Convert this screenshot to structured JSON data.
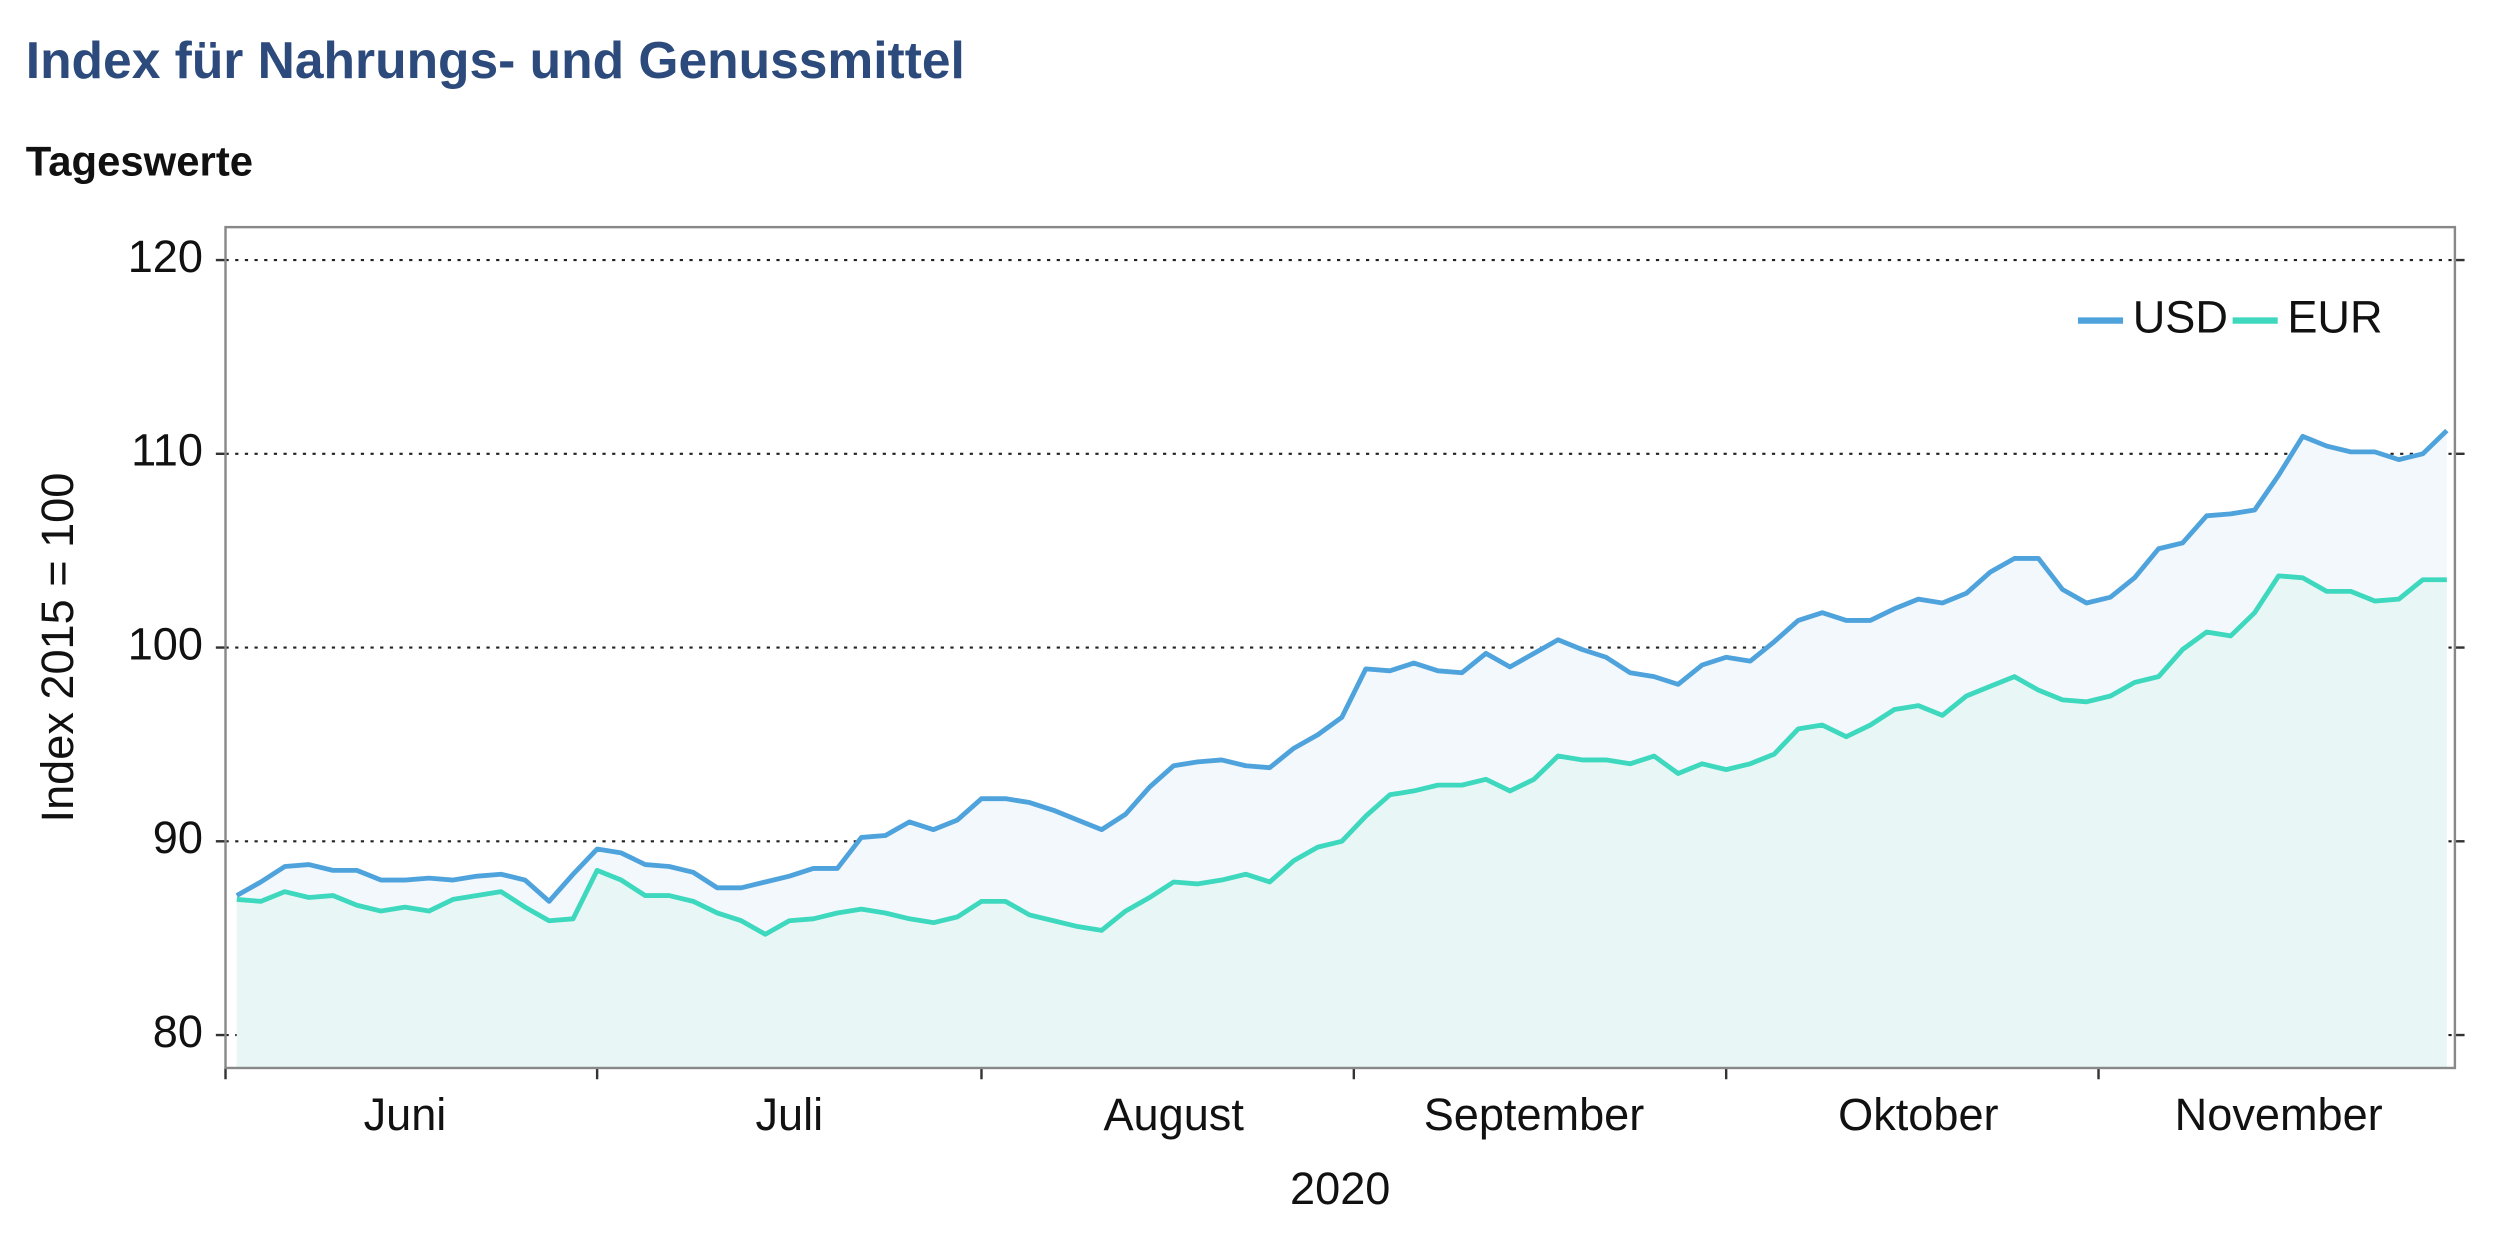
{
  "chart_data": {
    "type": "line",
    "title": "Index für Nahrungs- und Genussmittel",
    "subtitle": "Tageswerte",
    "xlabel": "2020",
    "ylabel": "Index 2015 = 100",
    "categories": [
      null,
      null,
      null,
      null,
      null,
      null,
      null,
      "Juni",
      null,
      null,
      null,
      null,
      null,
      null,
      null,
      null,
      null,
      null,
      null,
      null,
      null,
      null,
      null,
      "Juli",
      null,
      null,
      null,
      null,
      null,
      null,
      null,
      null,
      null,
      null,
      null,
      null,
      null,
      null,
      null,
      "August",
      null,
      null,
      null,
      null,
      null,
      null,
      null,
      null,
      null,
      null,
      null,
      null,
      null,
      null,
      "September",
      null,
      null,
      null,
      null,
      null,
      null,
      null,
      null,
      null,
      null,
      null,
      null,
      null,
      null,
      null,
      "Oktober",
      null,
      null,
      null,
      null,
      null,
      null,
      null,
      null,
      null,
      null,
      null,
      null,
      null,
      null,
      "November",
      null,
      null,
      null,
      null,
      null,
      null,
      null
    ],
    "series": [
      {
        "name": "USD",
        "color": "#4fa3dc",
        "fill": "#f3f8fc",
        "values": [
          87.2,
          87.9,
          88.7,
          88.8,
          88.5,
          88.5,
          88.0,
          88.0,
          88.1,
          88.0,
          88.2,
          88.3,
          88.0,
          86.9,
          88.3,
          89.6,
          89.4,
          88.8,
          88.7,
          88.4,
          87.6,
          87.6,
          87.9,
          88.2,
          88.6,
          88.6,
          90.2,
          90.3,
          91.0,
          90.6,
          91.1,
          92.2,
          92.2,
          92.0,
          91.6,
          91.1,
          90.6,
          91.4,
          92.8,
          93.9,
          94.1,
          94.2,
          93.9,
          93.8,
          94.8,
          95.5,
          96.4,
          98.9,
          98.8,
          99.2,
          98.8,
          98.7,
          99.7,
          99.0,
          99.7,
          100.4,
          99.9,
          99.5,
          98.7,
          98.5,
          98.1,
          99.1,
          99.5,
          99.3,
          100.3,
          101.4,
          101.8,
          101.4,
          101.4,
          102.0,
          102.5,
          102.3,
          102.8,
          103.9,
          104.6,
          104.6,
          103.0,
          102.3,
          102.6,
          103.6,
          105.1,
          105.4,
          106.8,
          106.9,
          107.1,
          108.9,
          110.9,
          110.4,
          110.1,
          110.1,
          109.7,
          110.0,
          111.2
        ]
      },
      {
        "name": "EUR",
        "color": "#3dd8bd",
        "fill": "#e8f7f6",
        "values": [
          87.0,
          86.9,
          87.4,
          87.1,
          87.2,
          86.7,
          86.4,
          86.6,
          86.4,
          87.0,
          87.2,
          87.4,
          86.6,
          85.9,
          86.0,
          88.5,
          88.0,
          87.2,
          87.2,
          86.9,
          86.3,
          85.9,
          85.2,
          85.9,
          86.0,
          86.3,
          86.5,
          86.3,
          86.0,
          85.8,
          86.1,
          86.9,
          86.9,
          86.2,
          85.9,
          85.6,
          85.4,
          86.4,
          87.1,
          87.9,
          87.8,
          88.0,
          88.3,
          87.9,
          89.0,
          89.7,
          90.0,
          91.3,
          92.4,
          92.6,
          92.9,
          92.9,
          93.2,
          92.6,
          93.2,
          94.4,
          94.2,
          94.2,
          94.0,
          94.4,
          93.5,
          94.0,
          93.7,
          94.0,
          94.5,
          95.8,
          96.0,
          95.4,
          96.0,
          96.8,
          97.0,
          96.5,
          97.5,
          98.0,
          98.5,
          97.8,
          97.3,
          97.2,
          97.5,
          98.2,
          98.5,
          99.9,
          100.8,
          100.6,
          101.8,
          103.7,
          103.6,
          102.9,
          102.9,
          102.4,
          102.5,
          103.5,
          103.5
        ]
      }
    ],
    "ylim": [
      78.3,
      121.7
    ],
    "yticks": [
      80,
      90,
      100,
      110,
      120
    ],
    "grid": true,
    "legend": "upper right"
  }
}
